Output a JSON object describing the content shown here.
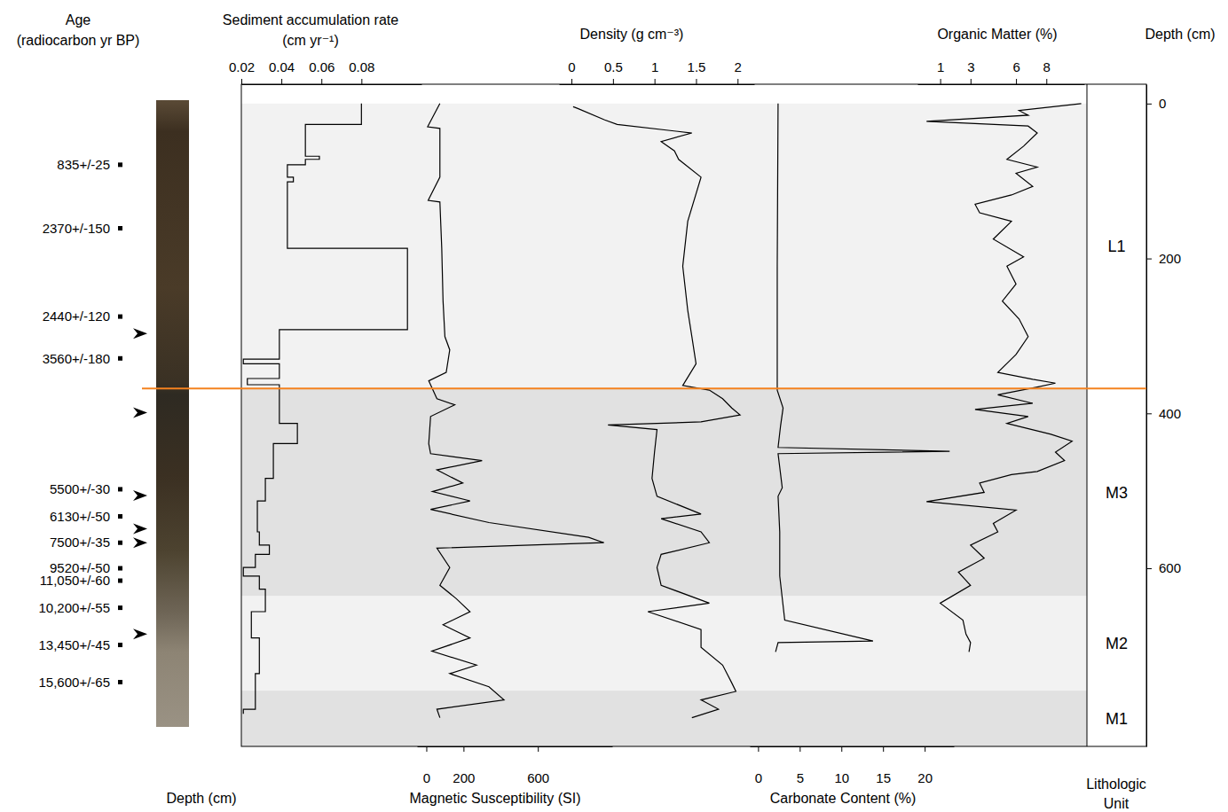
{
  "chart_data": {
    "type": "line",
    "y_label": "Depth (cm)",
    "ylim": [
      830,
      -25
    ],
    "yticks": [
      0,
      200,
      400,
      600
    ],
    "age_label": "Age (radiocarbon yr BP)",
    "core_label": "Depth (cm)",
    "unit_label": "Lithologic Unit",
    "ages": [
      {
        "label": "835+/-25",
        "depth": 79
      },
      {
        "label": "2370+/-150",
        "depth": 161
      },
      {
        "label": "2440+/-120",
        "depth": 275
      },
      {
        "label": "3560+/-180",
        "depth": 329
      },
      {
        "label": "5500+/-30",
        "depth": 498
      },
      {
        "label": "6130+/-50",
        "depth": 533
      },
      {
        "label": "7500+/-35",
        "depth": 567
      },
      {
        "label": "9520+/-50",
        "depth": 600
      },
      {
        "label": "11,050+/-60",
        "depth": 616
      },
      {
        "label": "10,200+/-55",
        "depth": 651
      },
      {
        "label": "13,450+/-45",
        "depth": 699
      },
      {
        "label": "15,600+/-65",
        "depth": 747
      }
    ],
    "arrow_depths": [
      297,
      399,
      506,
      549,
      567,
      685
    ],
    "boundary": {
      "depth": 368,
      "color": "#f4821f"
    },
    "units": [
      {
        "name": "L1",
        "top": 0,
        "bottom": 368,
        "color": "#f2f2f2"
      },
      {
        "name": "M3",
        "top": 368,
        "bottom": 636,
        "color": "#e1e1e1"
      },
      {
        "name": "M2",
        "top": 636,
        "bottom": 758,
        "color": "#f2f2f2"
      },
      {
        "name": "M1",
        "top": 758,
        "bottom": 830,
        "color": "#e1e1e1"
      }
    ],
    "panels": [
      {
        "x_label": "Sediment accumulation rate (cm yr⁻¹)",
        "xlim": [
          0.02,
          0.11
        ],
        "xticks": [
          0.02,
          0.04,
          0.06,
          0.08
        ],
        "series": [
          {
            "color": "#000000",
            "line_style": "step",
            "depth": [
              0,
              27,
              68,
              72,
              79,
              95,
              101,
              187,
              292,
              330,
              336,
              355,
              363,
              413,
              439,
              484,
              513,
              553,
              570,
              582,
              599,
              610,
              627,
              656,
              690,
              736,
              782,
              788
            ],
            "values": [
              0.08,
              0.052,
              0.059,
              0.052,
              0.043,
              0.046,
              0.043,
              0.103,
              0.039,
              0.021,
              0.039,
              0.023,
              0.039,
              0.048,
              0.036,
              0.032,
              0.028,
              0.029,
              0.034,
              0.027,
              0.021,
              0.029,
              0.032,
              0.025,
              0.029,
              0.027,
              0.021,
              0.021
            ]
          }
        ]
      },
      {
        "x_label": "Magnetic Susceptibility (SI)",
        "xlim": [
          -50,
          1000
        ],
        "xticks": [
          0,
          200,
          600
        ],
        "series": [
          {
            "color": "#000000",
            "line_style": "solid",
            "depth": [
              0,
              30,
              32,
              95,
              125,
              127,
              187,
              255,
              301,
              318,
              347,
              358,
              381,
              389,
              404,
              439,
              452,
              461,
              473,
              490,
              501,
              513,
              524,
              541,
              560,
              567,
              574,
              599,
              622,
              639,
              656,
              673,
              690,
              707,
              725,
              736,
              753,
              770,
              782,
              793
            ],
            "values": [
              73,
              7,
              73,
              73,
              10,
              73,
              83,
              90,
              100,
              126,
              107,
              13,
              57,
              153,
              23,
              13,
              23,
              300,
              57,
              196,
              33,
              235,
              23,
              337,
              873,
              955,
              57,
              126,
              73,
              160,
              235,
              90,
              235,
              30,
              270,
              126,
              337,
              418,
              57,
              73
            ]
          }
        ]
      },
      {
        "x_label": "Density (g cm⁻³)",
        "xlim": [
          -0.15,
          2.2
        ],
        "xticks": [
          0,
          0.5,
          1,
          1.5,
          2
        ],
        "series": [
          {
            "color": "#000000",
            "line_style": "solid",
            "depth": [
              4,
              6,
              21,
              27,
              38,
              49,
              61,
              72,
              95,
              152,
              210,
              267,
              301,
              336,
              364,
              370,
              381,
              393,
              402,
              411,
              415,
              421,
              450,
              484,
              507,
              530,
              536,
              553,
              567,
              582,
              599,
              622,
              645,
              656,
              679,
              702,
              725,
              748,
              759,
              770,
              782,
              793
            ],
            "values": [
              0.02,
              0.07,
              0.4,
              0.55,
              1.45,
              1.08,
              1.24,
              1.29,
              1.56,
              1.4,
              1.34,
              1.4,
              1.45,
              1.5,
              1.34,
              1.66,
              1.82,
              1.93,
              2.03,
              1.56,
              0.44,
              1.03,
              1.0,
              0.97,
              1.03,
              1.56,
              1.08,
              1.56,
              1.66,
              1.08,
              1.03,
              1.08,
              1.66,
              0.92,
              1.56,
              1.56,
              1.82,
              1.93,
              1.98,
              1.56,
              1.77,
              1.45
            ]
          }
        ]
      },
      {
        "x_label": "Carbonate Content (%)",
        "xlim": [
          -1,
          23.5
        ],
        "xticks": [
          0,
          5,
          10,
          15,
          20
        ],
        "series": [
          {
            "color": "#000000",
            "line_style": "solid",
            "depth": [
              0,
              210,
              370,
              393,
              416,
              444,
              449,
              452,
              496,
              507,
              553,
              610,
              667,
              694,
              696,
              708
            ],
            "values": [
              2.4,
              2.3,
              2.3,
              3.0,
              2.7,
              2.4,
              23,
              2.4,
              2.9,
              2.4,
              2.6,
              2.6,
              3.2,
              13.8,
              2.4,
              2.1
            ]
          }
        ]
      },
      {
        "x_label": "Organic Matter (%)",
        "xlim": [
          -0.5,
          10.5
        ],
        "xticks": [
          1,
          3,
          6,
          8
        ],
        "series": [
          {
            "color": "#000000",
            "line_style": "solid",
            "depth": [
              0,
              9,
              15,
              23,
              29,
              38,
              55,
              72,
              82,
              90,
              107,
              118,
              130,
              141,
              152,
              175,
              198,
              210,
              233,
              255,
              278,
              301,
              324,
              347,
              356,
              361,
              366,
              376,
              387,
              395,
              404,
              413,
              427,
              436,
              450,
              461,
              475,
              479,
              490,
              502,
              514,
              525,
              542,
              553,
              570,
              587,
              605,
              622,
              645,
              667,
              685,
              696,
              708
            ],
            "values": [
              10.3,
              6.2,
              6.8,
              0.1,
              6.8,
              7.4,
              6.5,
              5.4,
              7.4,
              6.0,
              7.1,
              5.7,
              3.3,
              3.6,
              5.7,
              4.5,
              6.5,
              5.4,
              6.0,
              5.1,
              6.2,
              6.8,
              6.0,
              4.8,
              7.1,
              8.6,
              7.4,
              4.8,
              7.1,
              3.3,
              6.8,
              5.4,
              8.3,
              9.7,
              8.6,
              9.2,
              7.4,
              5.7,
              3.6,
              3.9,
              0.1,
              6.0,
              4.5,
              4.8,
              3.0,
              3.9,
              2.2,
              3.0,
              1.0,
              2.5,
              2.7,
              3.0,
              2.9
            ]
          }
        ]
      }
    ]
  }
}
